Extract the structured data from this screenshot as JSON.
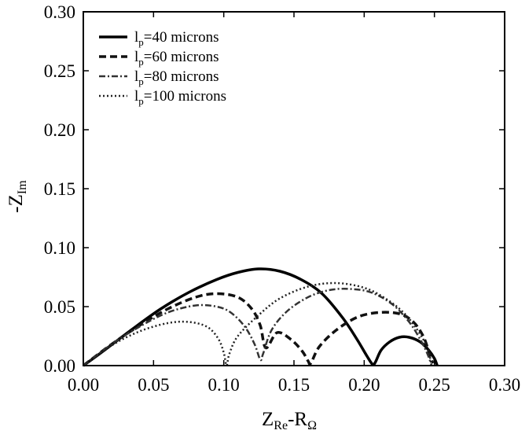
{
  "chart_data": {
    "type": "line",
    "title": "",
    "xlabel": {
      "main": "Z",
      "sub": "Re",
      "mid": "-R",
      "sub2": "Ω"
    },
    "ylabel": {
      "main": "-Z",
      "sub": "Im"
    },
    "xlim": [
      0,
      0.3
    ],
    "ylim": [
      0,
      0.3
    ],
    "xticks": [
      "0.00",
      "0.05",
      "0.10",
      "0.15",
      "0.20",
      "0.25",
      "0.30"
    ],
    "yticks": [
      "0.00",
      "0.05",
      "0.10",
      "0.15",
      "0.20",
      "0.25",
      "0.30"
    ],
    "legend_position": "top-left",
    "grid": false,
    "series": [
      {
        "name": {
          "pre": "l",
          "sub": "p",
          "post": "=40 microns"
        },
        "style": "solid",
        "x": [
          0.0,
          0.015,
          0.035,
          0.055,
          0.075,
          0.095,
          0.11,
          0.125,
          0.14,
          0.155,
          0.17,
          0.185,
          0.195,
          0.202,
          0.206,
          0.208,
          0.212,
          0.218,
          0.225,
          0.232,
          0.24,
          0.246,
          0.25,
          0.252
        ],
        "y": [
          0.0,
          0.013,
          0.031,
          0.048,
          0.062,
          0.073,
          0.079,
          0.082,
          0.08,
          0.073,
          0.061,
          0.04,
          0.022,
          0.008,
          0.001,
          0.003,
          0.013,
          0.02,
          0.024,
          0.024,
          0.02,
          0.013,
          0.006,
          0.0
        ]
      },
      {
        "name": {
          "pre": "l",
          "sub": "p",
          "post": "=60 microns"
        },
        "style": "dashed",
        "x": [
          0.0,
          0.02,
          0.04,
          0.06,
          0.08,
          0.095,
          0.11,
          0.12,
          0.126,
          0.13,
          0.138,
          0.148,
          0.156,
          0.16,
          0.162,
          0.168,
          0.18,
          0.195,
          0.21,
          0.225,
          0.235,
          0.242,
          0.246,
          0.249
        ],
        "y": [
          0.0,
          0.018,
          0.034,
          0.048,
          0.058,
          0.061,
          0.058,
          0.048,
          0.034,
          0.015,
          0.028,
          0.022,
          0.012,
          0.004,
          0.002,
          0.016,
          0.03,
          0.041,
          0.045,
          0.044,
          0.037,
          0.025,
          0.012,
          0.002
        ]
      },
      {
        "name": {
          "pre": "l",
          "sub": "p",
          "post": "=80 microns"
        },
        "style": "dashdot",
        "x": [
          0.0,
          0.02,
          0.04,
          0.06,
          0.08,
          0.095,
          0.105,
          0.115,
          0.122,
          0.126,
          0.128,
          0.134,
          0.145,
          0.16,
          0.175,
          0.19,
          0.205,
          0.22,
          0.232,
          0.24,
          0.245,
          0.248
        ],
        "y": [
          0.0,
          0.018,
          0.033,
          0.045,
          0.051,
          0.05,
          0.045,
          0.033,
          0.018,
          0.005,
          0.01,
          0.03,
          0.046,
          0.058,
          0.064,
          0.065,
          0.062,
          0.052,
          0.037,
          0.022,
          0.01,
          0.0
        ]
      },
      {
        "name": {
          "pre": "l",
          "sub": "p",
          "post": "=100 microns"
        },
        "style": "dotted",
        "x": [
          0.0,
          0.02,
          0.04,
          0.06,
          0.075,
          0.088,
          0.096,
          0.1,
          0.102,
          0.104,
          0.11,
          0.125,
          0.14,
          0.16,
          0.18,
          0.2,
          0.215,
          0.228,
          0.238,
          0.245,
          0.248
        ],
        "y": [
          0.0,
          0.017,
          0.029,
          0.036,
          0.037,
          0.033,
          0.023,
          0.011,
          0.0,
          0.01,
          0.025,
          0.043,
          0.057,
          0.067,
          0.07,
          0.066,
          0.057,
          0.045,
          0.03,
          0.015,
          0.0
        ]
      }
    ]
  }
}
